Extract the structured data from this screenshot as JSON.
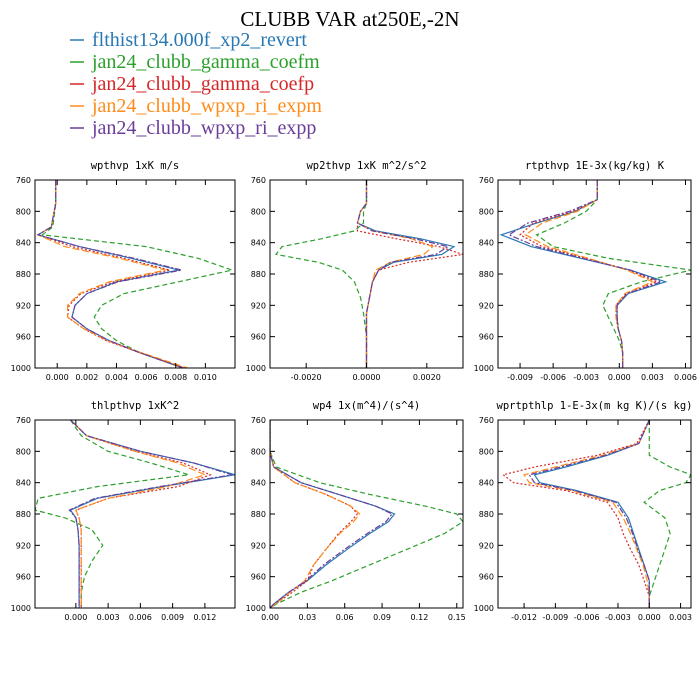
{
  "title": "CLUBB VAR at250E,-2N",
  "legend": [
    {
      "label": "flthist134.000f_xp2_revert",
      "color": "#2878b4"
    },
    {
      "label": "jan24_clubb_gamma_coefm",
      "color": "#2ca02c"
    },
    {
      "label": "jan24_clubb_gamma_coefp",
      "color": "#d62728"
    },
    {
      "label": "jan24_clubb_wpxp_ri_expm",
      "color": "#ff8c1a"
    },
    {
      "label": "jan24_clubb_wpxp_ri_expp",
      "color": "#6a3d9a"
    }
  ],
  "series_colors": [
    "#2878b4",
    "#2ca02c",
    "#d62728",
    "#ff8c1a",
    "#6a3d9a"
  ],
  "series_dash": [
    "none",
    "5,3",
    "2,2",
    "7,3",
    "6,2,2,2"
  ],
  "chart_data": [
    {
      "type": "line",
      "title": "wpthvp  1xK m/s",
      "xlim": [
        -0.0015,
        0.012
      ],
      "xticks": [
        {
          "v": 0.0,
          "label": "0.000"
        },
        {
          "v": 0.002,
          "label": "0.002"
        },
        {
          "v": 0.004,
          "label": "0.004"
        },
        {
          "v": 0.006,
          "label": "0.006"
        },
        {
          "v": 0.008,
          "label": "0.008"
        },
        {
          "v": 0.01,
          "label": "0.010"
        }
      ],
      "ylim": [
        760,
        1000
      ],
      "yticks": [
        760,
        800,
        840,
        880,
        920,
        960,
        1000
      ],
      "y": [
        760,
        790,
        820,
        830,
        845,
        860,
        875,
        890,
        905,
        920,
        935,
        950,
        965,
        980,
        1000
      ],
      "series": [
        {
          "values": [
            -0.0001,
            -0.0001,
            -0.0004,
            -0.0013,
            0.0015,
            0.005,
            0.0082,
            0.004,
            0.002,
            0.0012,
            0.001,
            0.002,
            0.0035,
            0.0055,
            0.0085
          ]
        },
        {
          "values": [
            -0.0001,
            -0.0001,
            -0.0003,
            -0.001,
            0.006,
            0.0095,
            0.0118,
            0.0082,
            0.0045,
            0.003,
            0.0025,
            0.003,
            0.004,
            0.0055,
            0.0085
          ]
        },
        {
          "values": [
            -0.0001,
            -0.0001,
            -0.0004,
            -0.0013,
            0.001,
            0.0045,
            0.0076,
            0.0038,
            0.0016,
            0.0008,
            0.0007,
            0.0018,
            0.0033,
            0.0055,
            0.0086
          ]
        },
        {
          "values": [
            -0.0001,
            -0.0001,
            -0.0004,
            -0.0013,
            0.0005,
            0.0042,
            0.0073,
            0.0035,
            0.0015,
            0.0007,
            0.0007,
            0.0018,
            0.0034,
            0.0056,
            0.0088
          ]
        },
        {
          "values": [
            -0.0001,
            -0.0001,
            -0.0004,
            -0.0013,
            0.0015,
            0.0052,
            0.0084,
            0.0041,
            0.002,
            0.0012,
            0.001,
            0.002,
            0.0035,
            0.0055,
            0.0085
          ]
        }
      ]
    },
    {
      "type": "line",
      "title": "wp2thvp  1xK m^2/s^2",
      "xlim": [
        -0.0032,
        0.0032
      ],
      "xticks": [
        {
          "v": -0.002,
          "label": "-0.0020"
        },
        {
          "v": 0.0,
          "label": "0.0000"
        },
        {
          "v": 0.002,
          "label": "0.0020"
        }
      ],
      "ylim": [
        760,
        1000
      ],
      "yticks": [
        760,
        800,
        840,
        880,
        920,
        960,
        1000
      ],
      "y": [
        760,
        790,
        800,
        815,
        825,
        835,
        845,
        855,
        865,
        875,
        890,
        910,
        930,
        960,
        1000
      ],
      "series": [
        {
          "values": [
            0.0,
            0.0,
            -0.0002,
            -0.0003,
            0.0003,
            0.0018,
            0.0029,
            0.0025,
            0.0009,
            0.0004,
            0.0002,
            0.0001,
            0.0,
            0.0,
            0.0
          ]
        },
        {
          "values": [
            0.0,
            0.0,
            -0.0001,
            -0.0001,
            -0.0004,
            -0.0015,
            -0.0028,
            -0.003,
            -0.0016,
            -0.0008,
            -0.0004,
            -0.0002,
            -0.0001,
            0.0,
            0.0
          ]
        },
        {
          "values": [
            0.0,
            0.0,
            -0.0002,
            -0.0003,
            -0.0003,
            0.001,
            0.0024,
            0.0032,
            0.0014,
            0.0004,
            0.0002,
            0.0001,
            0.0,
            0.0,
            0.0
          ]
        },
        {
          "values": [
            0.0,
            0.0,
            -0.0002,
            -0.0003,
            0.0002,
            0.0015,
            0.0022,
            0.0019,
            0.0008,
            0.0003,
            0.0002,
            0.0001,
            0.0,
            0.0,
            0.0
          ]
        },
        {
          "values": [
            0.0,
            0.0,
            -0.0002,
            -0.0003,
            0.0002,
            0.0016,
            0.0027,
            0.0023,
            0.0008,
            0.0004,
            0.0002,
            0.0001,
            0.0,
            0.0,
            0.0
          ]
        }
      ]
    },
    {
      "type": "line",
      "title": "rtpthvp  1E-3x(kg/kg) K",
      "xlim": [
        -0.011,
        0.0065
      ],
      "xticks": [
        {
          "v": -0.009,
          "label": "-0.009"
        },
        {
          "v": -0.006,
          "label": "-0.006"
        },
        {
          "v": -0.003,
          "label": "-0.003"
        },
        {
          "v": 0.0,
          "label": "0.000"
        },
        {
          "v": 0.003,
          "label": "0.003"
        },
        {
          "v": 0.006,
          "label": "0.006"
        }
      ],
      "ylim": [
        760,
        1000
      ],
      "yticks": [
        760,
        800,
        840,
        880,
        920,
        960,
        1000
      ],
      "y": [
        760,
        785,
        800,
        815,
        830,
        845,
        860,
        875,
        890,
        905,
        920,
        935,
        950,
        965,
        980,
        1000
      ],
      "series": [
        {
          "values": [
            -0.002,
            -0.002,
            -0.004,
            -0.0075,
            -0.0107,
            -0.008,
            -0.0035,
            0.001,
            0.0042,
            0.0008,
            -0.0002,
            -0.0002,
            -0.0001,
            0.0002,
            0.0003,
            0.0003
          ]
        },
        {
          "values": [
            -0.002,
            -0.002,
            -0.003,
            -0.005,
            -0.0075,
            -0.006,
            -0.001,
            0.0065,
            0.002,
            -0.001,
            -0.0015,
            -0.001,
            -0.0005,
            0.0,
            0.0003,
            0.0003
          ]
        },
        {
          "values": [
            -0.002,
            -0.002,
            -0.0042,
            -0.0078,
            -0.009,
            -0.007,
            -0.003,
            0.0008,
            0.0034,
            0.0006,
            -0.0003,
            -0.0003,
            -0.0001,
            0.0002,
            0.0003,
            0.0003
          ]
        },
        {
          "values": [
            -0.002,
            -0.002,
            -0.0038,
            -0.007,
            -0.0085,
            -0.0065,
            -0.0028,
            0.0007,
            0.003,
            0.0005,
            -0.0003,
            -0.0003,
            -0.0001,
            0.0002,
            0.0003,
            0.0003
          ]
        },
        {
          "values": [
            -0.002,
            -0.002,
            -0.0045,
            -0.0083,
            -0.01,
            -0.0075,
            -0.0033,
            0.001,
            0.0038,
            0.0007,
            -0.0002,
            -0.0002,
            -0.0001,
            0.0002,
            0.0003,
            0.0003
          ]
        }
      ]
    },
    {
      "type": "line",
      "title": "thlpthvp  1xK^2",
      "xlim": [
        -0.0038,
        0.0148
      ],
      "xticks": [
        {
          "v": 0.0,
          "label": "0.000"
        },
        {
          "v": 0.003,
          "label": "0.003"
        },
        {
          "v": 0.006,
          "label": "0.006"
        },
        {
          "v": 0.009,
          "label": "0.009"
        },
        {
          "v": 0.012,
          "label": "0.012"
        }
      ],
      "ylim": [
        760,
        1000
      ],
      "yticks": [
        760,
        800,
        840,
        880,
        920,
        960,
        1000
      ],
      "y": [
        760,
        780,
        800,
        815,
        830,
        845,
        860,
        875,
        885,
        900,
        920,
        940,
        960,
        980,
        1000
      ],
      "series": [
        {
          "values": [
            -0.0005,
            0.001,
            0.006,
            0.011,
            0.0148,
            0.008,
            0.002,
            -0.0005,
            0.0,
            0.0002,
            0.0003,
            0.0003,
            0.0003,
            0.0003,
            0.0003
          ]
        },
        {
          "values": [
            -0.0005,
            0.0005,
            0.003,
            0.007,
            0.0105,
            0.002,
            -0.0035,
            -0.0038,
            -0.001,
            0.0015,
            0.0025,
            0.0015,
            0.0008,
            0.0005,
            0.0005
          ]
        },
        {
          "values": [
            -0.0005,
            0.001,
            0.0055,
            0.01,
            0.0125,
            0.0095,
            0.003,
            0.0,
            0.0003,
            0.0005,
            0.0005,
            0.0005,
            0.0005,
            0.0005,
            0.0005
          ]
        },
        {
          "values": [
            -0.0005,
            0.001,
            0.0055,
            0.0095,
            0.012,
            0.0085,
            0.003,
            0.0,
            0.0003,
            0.0005,
            0.0005,
            0.0005,
            0.0005,
            0.0005,
            0.0005
          ]
        },
        {
          "values": [
            -0.0005,
            0.001,
            0.006,
            0.011,
            0.0145,
            0.0078,
            0.0018,
            -0.0006,
            0.0,
            0.0002,
            0.0003,
            0.0003,
            0.0003,
            0.0003,
            0.0003
          ]
        }
      ]
    },
    {
      "type": "line",
      "title": "wp4  1x(m^4)/(s^4)",
      "xlim": [
        0.0,
        0.155
      ],
      "xticks": [
        {
          "v": 0.0,
          "label": "0.00"
        },
        {
          "v": 0.03,
          "label": "0.03"
        },
        {
          "v": 0.06,
          "label": "0.06"
        },
        {
          "v": 0.09,
          "label": "0.09"
        },
        {
          "v": 0.12,
          "label": "0.12"
        },
        {
          "v": 0.15,
          "label": "0.15"
        }
      ],
      "ylim": [
        760,
        1000
      ],
      "yticks": [
        760,
        800,
        840,
        880,
        920,
        960,
        1000
      ],
      "y": [
        760,
        800,
        820,
        840,
        855,
        870,
        880,
        890,
        905,
        925,
        945,
        965,
        980,
        995,
        1000
      ],
      "series": [
        {
          "values": [
            0.0,
            0.0,
            0.003,
            0.025,
            0.055,
            0.085,
            0.1,
            0.095,
            0.08,
            0.062,
            0.045,
            0.03,
            0.015,
            0.003,
            0.0
          ]
        },
        {
          "values": [
            0.0,
            0.0,
            0.005,
            0.04,
            0.08,
            0.125,
            0.15,
            0.155,
            0.14,
            0.11,
            0.08,
            0.05,
            0.025,
            0.005,
            0.0
          ]
        },
        {
          "values": [
            0.0,
            0.0,
            0.003,
            0.02,
            0.045,
            0.065,
            0.07,
            0.065,
            0.055,
            0.045,
            0.035,
            0.03,
            0.018,
            0.004,
            0.0
          ]
        },
        {
          "values": [
            0.0,
            0.0,
            0.003,
            0.02,
            0.045,
            0.065,
            0.072,
            0.067,
            0.056,
            0.045,
            0.035,
            0.028,
            0.016,
            0.004,
            0.0
          ]
        },
        {
          "values": [
            0.0,
            0.0,
            0.003,
            0.025,
            0.055,
            0.085,
            0.098,
            0.093,
            0.078,
            0.06,
            0.043,
            0.029,
            0.015,
            0.003,
            0.0
          ]
        }
      ]
    },
    {
      "type": "line",
      "title": "wprtpthlp  1-E-3x(m kg K)/(s kg)",
      "xlim": [
        -0.0145,
        0.004
      ],
      "xticks": [
        {
          "v": -0.012,
          "label": "-0.012"
        },
        {
          "v": -0.009,
          "label": "-0.009"
        },
        {
          "v": -0.006,
          "label": "-0.006"
        },
        {
          "v": -0.003,
          "label": "-0.003"
        },
        {
          "v": 0.0,
          "label": "0.000"
        },
        {
          "v": 0.003,
          "label": "0.003"
        }
      ],
      "ylim": [
        760,
        1000
      ],
      "yticks": [
        760,
        800,
        840,
        880,
        920,
        960,
        1000
      ],
      "y": [
        760,
        790,
        805,
        820,
        830,
        840,
        850,
        865,
        885,
        905,
        925,
        945,
        965,
        985,
        1000
      ],
      "series": [
        {
          "values": [
            0.0,
            -0.001,
            -0.004,
            -0.008,
            -0.011,
            -0.0105,
            -0.007,
            -0.003,
            -0.002,
            -0.0015,
            -0.001,
            -0.0005,
            0.0,
            0.0,
            0.0
          ]
        },
        {
          "values": [
            0.0,
            0.0,
            0.0,
            0.002,
            0.004,
            0.0035,
            0.001,
            -0.0005,
            0.0015,
            0.002,
            0.0015,
            0.001,
            0.0005,
            0.0,
            0.0
          ]
        },
        {
          "values": [
            0.0,
            -0.0012,
            -0.005,
            -0.011,
            -0.014,
            -0.013,
            -0.008,
            -0.004,
            -0.003,
            -0.0025,
            -0.0018,
            -0.001,
            -0.0005,
            0.0,
            0.0
          ]
        },
        {
          "values": [
            0.0,
            -0.001,
            -0.0045,
            -0.009,
            -0.012,
            -0.0115,
            -0.0075,
            -0.0035,
            -0.0025,
            -0.0018,
            -0.0012,
            -0.0006,
            -0.0002,
            0.0,
            0.0
          ]
        },
        {
          "values": [
            0.0,
            -0.001,
            -0.0042,
            -0.0085,
            -0.0115,
            -0.011,
            -0.0072,
            -0.0032,
            -0.0022,
            -0.0016,
            -0.0011,
            -0.0005,
            0.0,
            0.0,
            0.0
          ]
        }
      ]
    }
  ]
}
